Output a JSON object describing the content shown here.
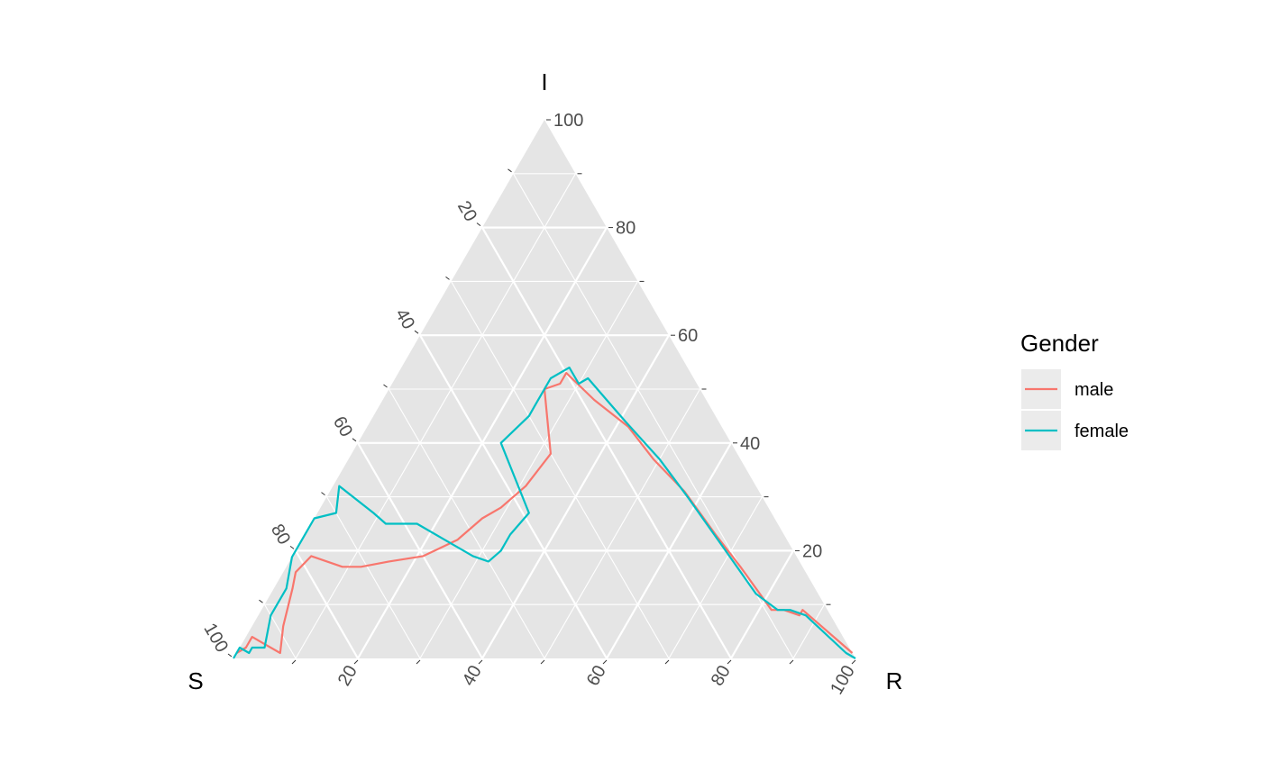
{
  "chart_data": {
    "type": "ternary-line",
    "axes": {
      "top": "I",
      "left": "S",
      "right": "R"
    },
    "ticks": [
      20,
      40,
      60,
      80,
      100
    ],
    "grid": true,
    "legend": {
      "title": "Gender",
      "position": "right"
    },
    "series": [
      {
        "name": "male",
        "color": "#F8766D",
        "points": [
          {
            "S": 99,
            "I": 1,
            "R": 0
          },
          {
            "S": 97,
            "I": 2,
            "R": 1
          },
          {
            "S": 95,
            "I": 4,
            "R": 1
          },
          {
            "S": 94,
            "I": 3,
            "R": 3
          },
          {
            "S": 92,
            "I": 1,
            "R": 7
          },
          {
            "S": 89,
            "I": 6,
            "R": 5
          },
          {
            "S": 84,
            "I": 13,
            "R": 3
          },
          {
            "S": 82,
            "I": 16,
            "R": 2
          },
          {
            "S": 78,
            "I": 19,
            "R": 3
          },
          {
            "S": 74,
            "I": 17,
            "R": 9
          },
          {
            "S": 71,
            "I": 17,
            "R": 12
          },
          {
            "S": 66,
            "I": 18,
            "R": 16
          },
          {
            "S": 60,
            "I": 19,
            "R": 21
          },
          {
            "S": 53,
            "I": 22,
            "R": 25
          },
          {
            "S": 47,
            "I": 26,
            "R": 27
          },
          {
            "S": 43,
            "I": 28,
            "R": 29
          },
          {
            "S": 37,
            "I": 32,
            "R": 31
          },
          {
            "S": 30,
            "I": 38,
            "R": 32
          },
          {
            "S": 25,
            "I": 50,
            "R": 25
          },
          {
            "S": 22,
            "I": 51,
            "R": 27
          },
          {
            "S": 20,
            "I": 53,
            "R": 27
          },
          {
            "S": 18,
            "I": 48,
            "R": 34
          },
          {
            "S": 15,
            "I": 43,
            "R": 42
          },
          {
            "S": 14,
            "I": 37,
            "R": 49
          },
          {
            "S": 12,
            "I": 31,
            "R": 57
          },
          {
            "S": 11,
            "I": 23,
            "R": 66
          },
          {
            "S": 10,
            "I": 17,
            "R": 73
          },
          {
            "S": 9,
            "I": 9,
            "R": 82
          },
          {
            "S": 7,
            "I": 9,
            "R": 84
          },
          {
            "S": 5,
            "I": 8,
            "R": 87
          },
          {
            "S": 4,
            "I": 9,
            "R": 87
          },
          {
            "S": 0,
            "I": 1,
            "R": 99
          }
        ]
      },
      {
        "name": "female",
        "color": "#00BFC4",
        "points": [
          {
            "S": 100,
            "I": 0,
            "R": 0
          },
          {
            "S": 98,
            "I": 2,
            "R": 0
          },
          {
            "S": 97,
            "I": 1,
            "R": 2
          },
          {
            "S": 96,
            "I": 2,
            "R": 2
          },
          {
            "S": 94,
            "I": 2,
            "R": 4
          },
          {
            "S": 90,
            "I": 8,
            "R": 2
          },
          {
            "S": 85,
            "I": 13,
            "R": 2
          },
          {
            "S": 82,
            "I": 19,
            "R": 0
          },
          {
            "S": 78,
            "I": 22,
            "R": 0
          },
          {
            "S": 74,
            "I": 26,
            "R": 0
          },
          {
            "S": 70,
            "I": 27,
            "R": 3
          },
          {
            "S": 67,
            "I": 32,
            "R": 1
          },
          {
            "S": 64,
            "I": 27,
            "R": 9
          },
          {
            "S": 63,
            "I": 25,
            "R": 12
          },
          {
            "S": 62,
            "I": 25,
            "R": 13
          },
          {
            "S": 58,
            "I": 25,
            "R": 17
          },
          {
            "S": 52,
            "I": 19,
            "R": 29
          },
          {
            "S": 50,
            "I": 18,
            "R": 32
          },
          {
            "S": 47,
            "I": 20,
            "R": 33
          },
          {
            "S": 44,
            "I": 23,
            "R": 33
          },
          {
            "S": 39,
            "I": 27,
            "R": 34
          },
          {
            "S": 37,
            "I": 40,
            "R": 23
          },
          {
            "S": 30,
            "I": 45,
            "R": 25
          },
          {
            "S": 28,
            "I": 47,
            "R": 25
          },
          {
            "S": 23,
            "I": 52,
            "R": 25
          },
          {
            "S": 19,
            "I": 54,
            "R": 27
          },
          {
            "S": 19,
            "I": 51,
            "R": 30
          },
          {
            "S": 17,
            "I": 52,
            "R": 31
          },
          {
            "S": 16,
            "I": 48,
            "R": 36
          },
          {
            "S": 15,
            "I": 44,
            "R": 41
          },
          {
            "S": 13,
            "I": 37,
            "R": 50
          },
          {
            "S": 12,
            "I": 30,
            "R": 58
          },
          {
            "S": 11,
            "I": 21,
            "R": 68
          },
          {
            "S": 10,
            "I": 12,
            "R": 78
          },
          {
            "S": 8,
            "I": 9,
            "R": 83
          },
          {
            "S": 6,
            "I": 9,
            "R": 85
          },
          {
            "S": 4,
            "I": 8,
            "R": 88
          },
          {
            "S": 1,
            "I": 1,
            "R": 98
          },
          {
            "S": 0,
            "I": 0,
            "R": 100
          }
        ]
      }
    ]
  }
}
